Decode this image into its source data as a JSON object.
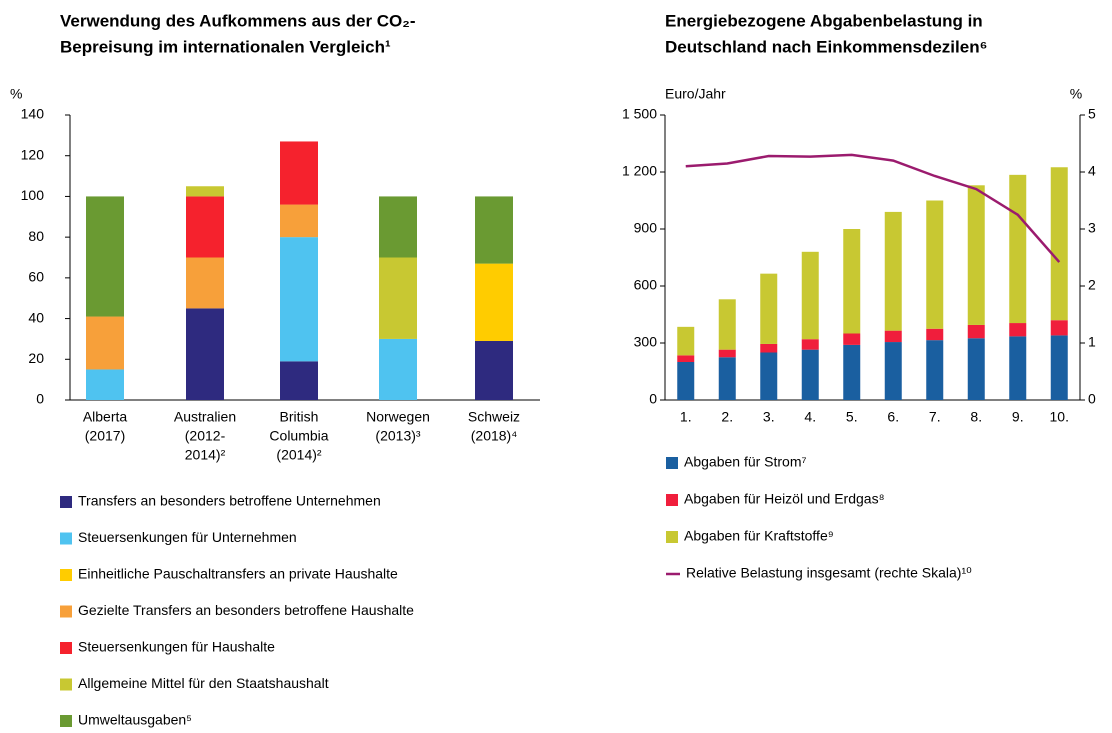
{
  "chart_data": [
    {
      "type": "bar",
      "stacked": true,
      "title": [
        "Verwendung des Aufkommens aus der CO₂-",
        "Bepreisung im internationalen Vergleich¹"
      ],
      "ylabel": "%",
      "categories": [
        [
          "Alberta",
          "(2017)"
        ],
        [
          "Australien",
          "(2012-",
          "2014)²"
        ],
        [
          "British",
          "Columbia",
          "(2014)²"
        ],
        [
          "Norwegen",
          "(2013)³"
        ],
        [
          "Schweiz",
          "(2018)⁴"
        ]
      ],
      "series": [
        {
          "name": "Transfers an besonders betroffene Unternehmen",
          "color": "#2e2a7f",
          "values": [
            0,
            45,
            19,
            0,
            29
          ]
        },
        {
          "name": "Steuersenkungen für Unternehmen",
          "color": "#4fc3f0",
          "values": [
            15,
            0,
            61,
            30,
            0
          ]
        },
        {
          "name": "Einheitliche Pauschaltransfers an private Haushalte",
          "color": "#ffcc00",
          "values": [
            0,
            0,
            0,
            0,
            38
          ]
        },
        {
          "name": "Gezielte Transfers an besonders betroffene Haushalte",
          "color": "#f7a03a",
          "values": [
            26,
            25,
            16,
            0,
            0
          ]
        },
        {
          "name": "Steuersenkungen für Haushalte",
          "color": "#f5222d",
          "values": [
            0,
            30,
            31,
            0,
            0
          ]
        },
        {
          "name": "Allgemeine Mittel für den Staatshaushalt",
          "color": "#c8c832",
          "values": [
            0,
            5,
            0,
            40,
            0
          ]
        },
        {
          "name": "Umweltausgaben⁵",
          "color": "#6a9a32",
          "values": [
            59,
            0,
            0,
            30,
            33
          ]
        }
      ],
      "ylim": [
        0,
        140
      ],
      "yticks": [
        0,
        20,
        40,
        60,
        80,
        100,
        120,
        140
      ]
    },
    {
      "type": "bar",
      "stacked": true,
      "title": [
        "Energiebezogene Abgabenbelastung in",
        "Deutschland nach Einkommensdezilen⁶"
      ],
      "ylabel": "Euro/Jahr",
      "y2label": "%",
      "categories": [
        [
          "1."
        ],
        [
          "2."
        ],
        [
          "3."
        ],
        [
          "4."
        ],
        [
          "5."
        ],
        [
          "6."
        ],
        [
          "7."
        ],
        [
          "8."
        ],
        [
          "9."
        ],
        [
          "10."
        ]
      ],
      "series": [
        {
          "name": "Abgaben für Strom⁷",
          "color": "#1a5fa0",
          "values": [
            200,
            225,
            250,
            265,
            290,
            305,
            315,
            325,
            335,
            340
          ]
        },
        {
          "name": "Abgaben für Heizöl und Erdgas⁸",
          "color": "#f01e3c",
          "values": [
            35,
            40,
            45,
            55,
            60,
            60,
            60,
            70,
            70,
            80
          ]
        },
        {
          "name": "Abgaben für Kraftstoffe⁹",
          "color": "#c8c832",
          "values": [
            150,
            265,
            370,
            460,
            550,
            625,
            675,
            735,
            780,
            805
          ]
        },
        {
          "name": "Relative Belastung insgesamt (rechte Skala)¹⁰",
          "color": "#9b1b6e",
          "type": "line",
          "axis": "y2",
          "values": [
            4.1,
            4.15,
            4.28,
            4.27,
            4.3,
            4.2,
            3.93,
            3.7,
            3.25,
            2.42
          ]
        }
      ],
      "ylim": [
        0,
        1500
      ],
      "yticks": [
        0,
        300,
        600,
        900,
        {
          "value": 1200,
          "label": "1 200"
        },
        {
          "value": 1500,
          "label": "1 500"
        }
      ],
      "y2lim": [
        0,
        5
      ],
      "y2ticks": [
        0,
        1,
        2,
        3,
        4,
        5
      ]
    }
  ]
}
